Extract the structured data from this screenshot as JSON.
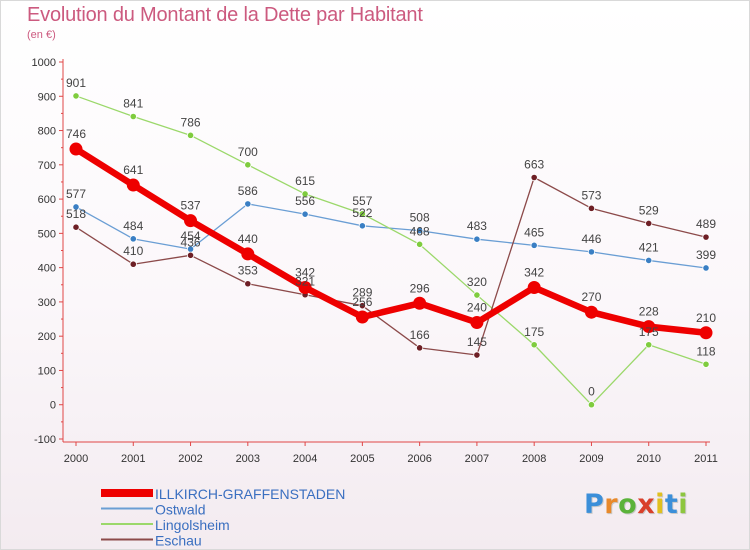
{
  "header": {
    "title": "Evolution du Montant de la Dette par Habitant",
    "unit": "(en €)"
  },
  "logo": {
    "text": "Proxiti",
    "letter_colors": [
      "#3b8fd9",
      "#e8892b",
      "#5bb33a",
      "#d9402b",
      "#e0c01f",
      "#3b8fd9",
      "#8dc63f"
    ]
  },
  "chart_data": {
    "type": "line",
    "title": "Evolution du Montant de la Dette par Habitant",
    "ylabel": "(en €)",
    "xlabel": "",
    "x": [
      "2000",
      "2001",
      "2002",
      "2003",
      "2004",
      "2005",
      "2006",
      "2007",
      "2008",
      "2009",
      "2010",
      "2011"
    ],
    "y_ticks": [
      -100,
      0,
      100,
      200,
      300,
      400,
      500,
      600,
      700,
      800,
      900,
      1000
    ],
    "ylim": [
      -100,
      1000
    ],
    "grid": false,
    "legend_position": "bottom-left",
    "series": [
      {
        "name": "Ostwald",
        "color": "#6a9ed4",
        "marker_color": "#3a7fc4",
        "width": 1.3,
        "marker_r": 3.2,
        "values": [
          577,
          484,
          454,
          586,
          556,
          522,
          508,
          483,
          465,
          446,
          421,
          399
        ],
        "labels": [
          "577",
          "484",
          "454",
          "586",
          "556",
          "522",
          "508",
          "483",
          "465",
          "446",
          "421",
          "399"
        ]
      },
      {
        "name": "Lingolsheim",
        "color": "#9bd86a",
        "marker_color": "#7fcc3e",
        "width": 1.3,
        "marker_r": 3.2,
        "values": [
          901,
          841,
          786,
          700,
          615,
          557,
          468,
          320,
          175,
          0,
          175,
          118
        ],
        "labels": [
          "901",
          "841",
          "786",
          "700",
          "615",
          "557",
          "468",
          "320",
          "175",
          "0",
          "175",
          "118"
        ]
      },
      {
        "name": "Eschau",
        "color": "#8c4a4a",
        "marker_color": "#6e1f25",
        "width": 1.3,
        "marker_r": 3.2,
        "values": [
          518,
          410,
          436,
          353,
          321,
          289,
          166,
          145,
          663,
          573,
          529,
          489
        ],
        "labels": [
          "518",
          "410",
          "436",
          "353",
          "321",
          "289",
          "166",
          "145",
          "663",
          "573",
          "529",
          "489"
        ]
      },
      {
        "name": "ILLKIRCH-GRAFFENSTADEN",
        "color": "#ee0000",
        "marker_color": "#ee0000",
        "width": 6.5,
        "marker_r": 6.5,
        "values": [
          746,
          641,
          537,
          440,
          342,
          256,
          296,
          240,
          342,
          270,
          228,
          210
        ],
        "labels": [
          "746",
          "641",
          "537",
          "440",
          "342",
          "256",
          "296",
          "240",
          "342",
          "270",
          "228",
          "210"
        ]
      }
    ],
    "legend": [
      {
        "name": "ILLKIRCH-GRAFFENSTADEN",
        "color": "#ee0000",
        "thick": true
      },
      {
        "name": "Ostwald",
        "color": "#6a9ed4",
        "thick": false
      },
      {
        "name": "Lingolsheim",
        "color": "#9bd86a",
        "thick": false
      },
      {
        "name": "Eschau",
        "color": "#8c4a4a",
        "thick": false
      }
    ]
  }
}
